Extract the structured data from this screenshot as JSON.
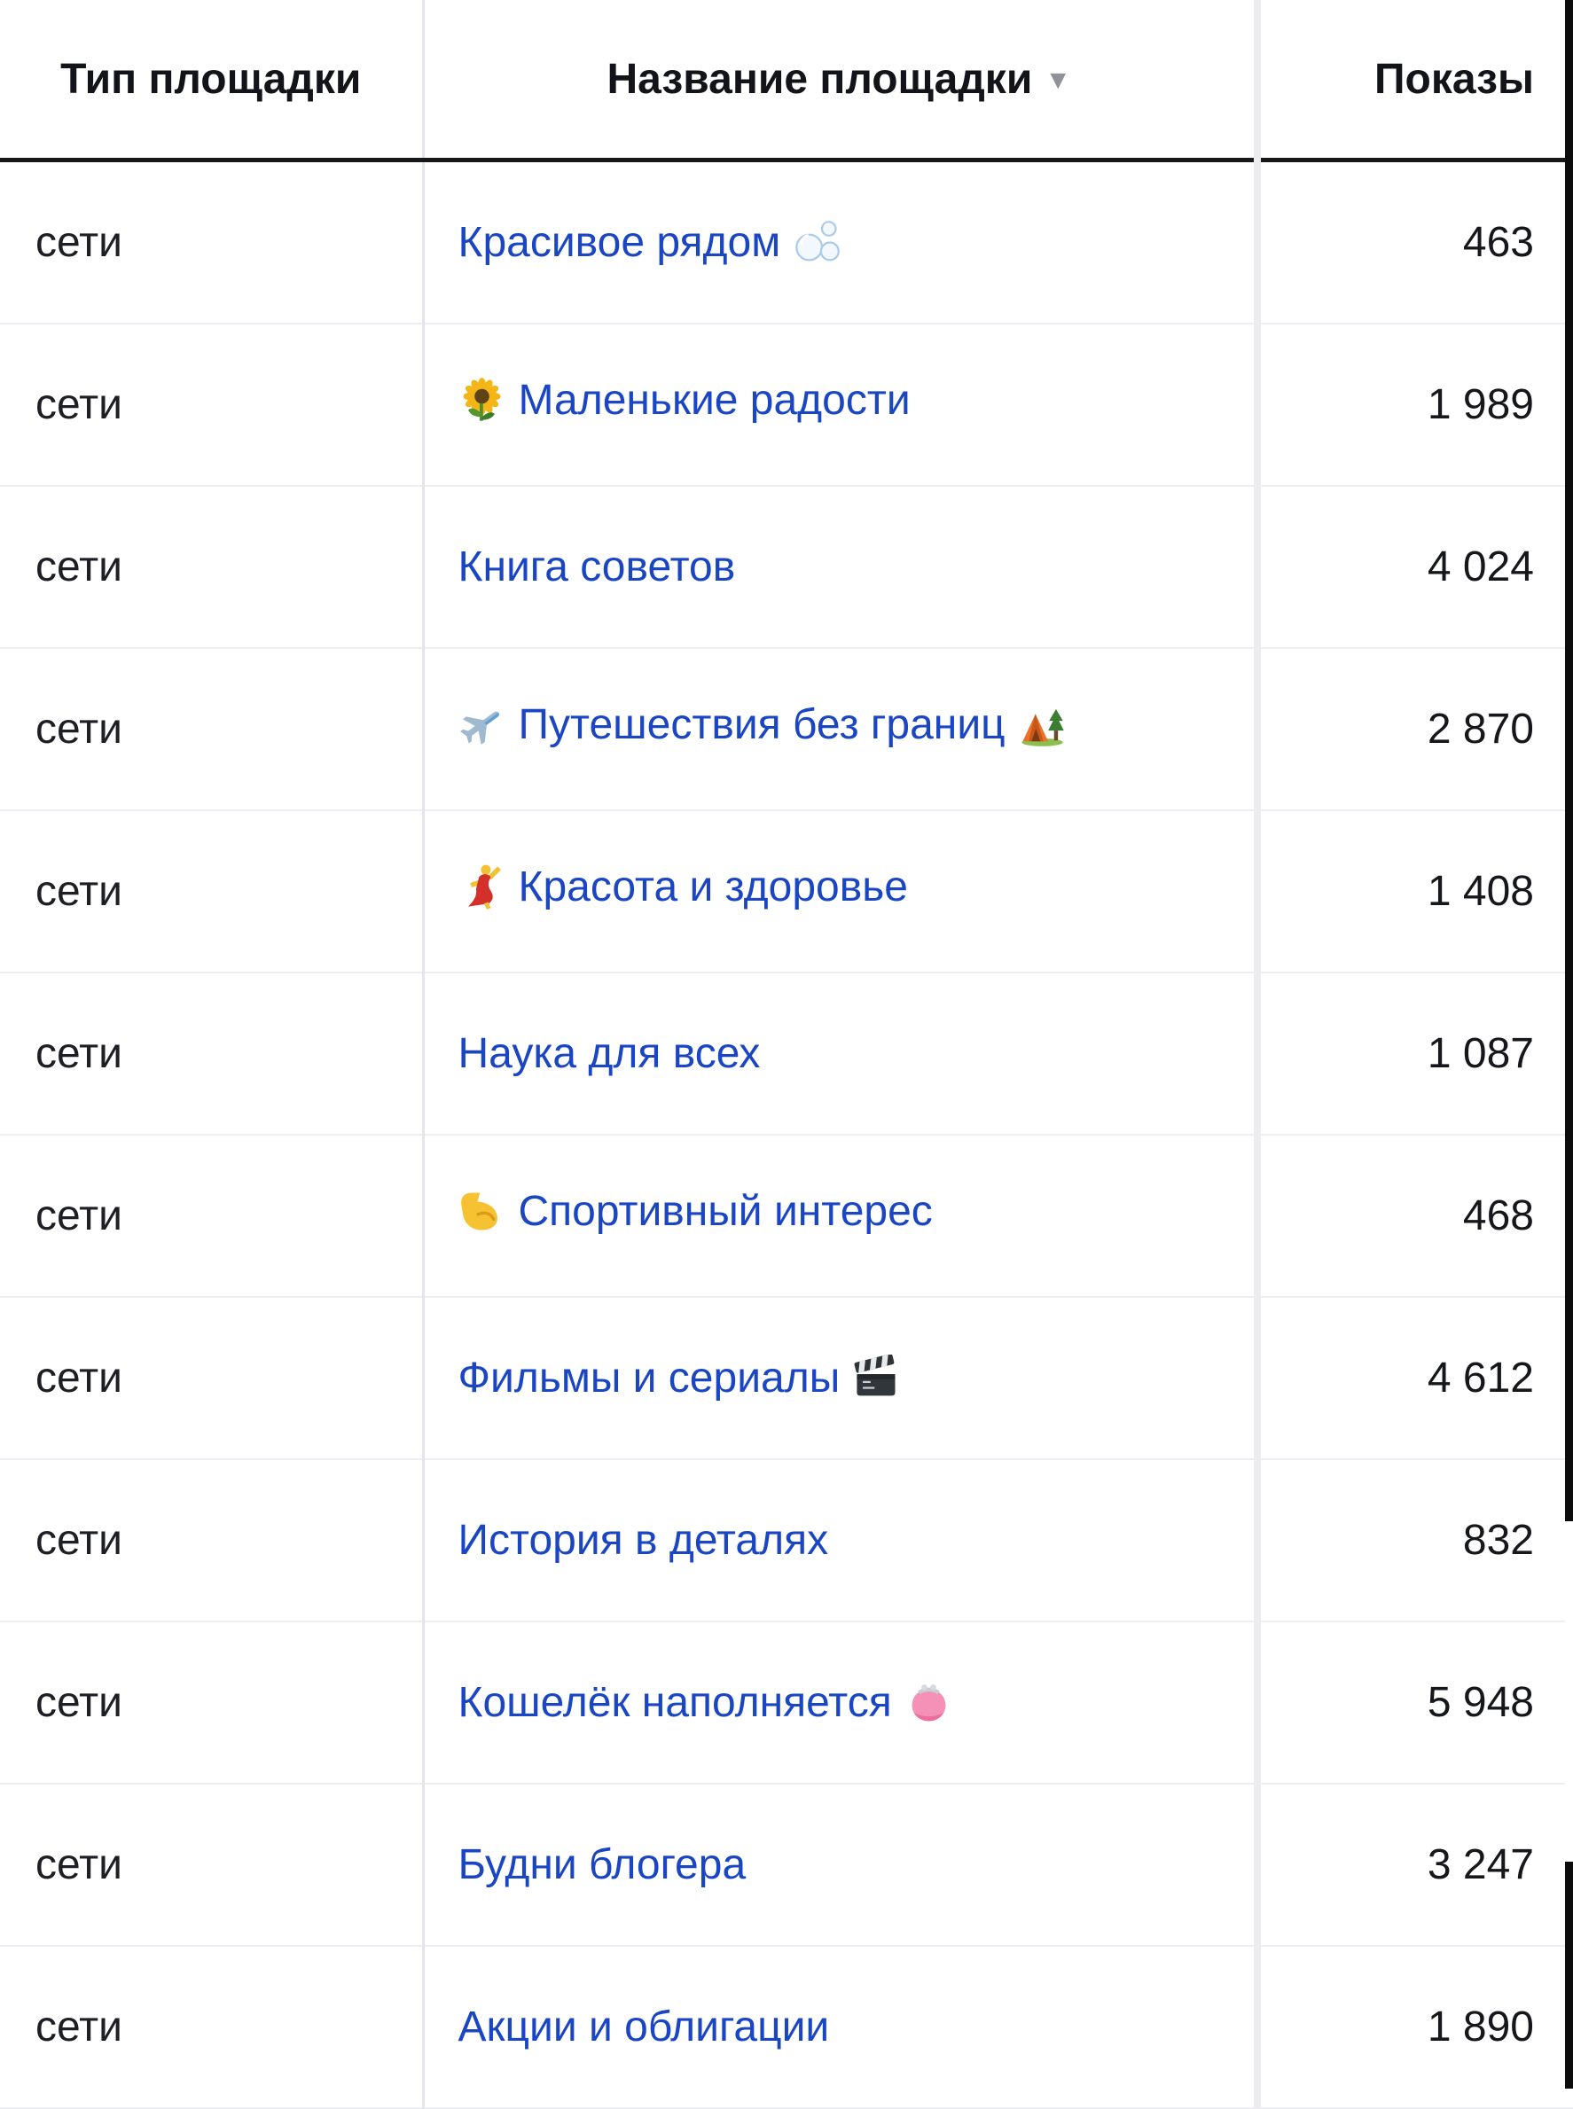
{
  "table": {
    "columns": [
      {
        "key": "type",
        "label": "Тип площадки",
        "align": "center"
      },
      {
        "key": "name",
        "label": "Название площадки",
        "align": "center",
        "sorted": "desc"
      },
      {
        "key": "impressions",
        "label": "Показы",
        "align": "right"
      }
    ],
    "sort_indicator": "▼",
    "rows": [
      {
        "type": "сети",
        "name": "Красивое рядом",
        "emoji_start": null,
        "emoji_end": "bubbles",
        "impressions": "463"
      },
      {
        "type": "сети",
        "name": "Маленькие радости",
        "emoji_start": "sunflower",
        "emoji_end": null,
        "impressions": "1 989"
      },
      {
        "type": "сети",
        "name": "Книга советов",
        "emoji_start": null,
        "emoji_end": null,
        "impressions": "4 024"
      },
      {
        "type": "сети",
        "name": "Путешествия без границ",
        "emoji_start": "airplane",
        "emoji_end": "camping",
        "impressions": "2 870"
      },
      {
        "type": "сети",
        "name": "Красота и здоровье",
        "emoji_start": "dancer",
        "emoji_end": null,
        "impressions": "1 408"
      },
      {
        "type": "сети",
        "name": "Наука для всех",
        "emoji_start": null,
        "emoji_end": null,
        "impressions": "1 087"
      },
      {
        "type": "сети",
        "name": "Спортивный интерес",
        "emoji_start": "biceps",
        "emoji_end": null,
        "impressions": "468"
      },
      {
        "type": "сети",
        "name": "Фильмы и сериалы",
        "emoji_start": null,
        "emoji_end": "clapper",
        "impressions": "4 612"
      },
      {
        "type": "сети",
        "name": "История в деталях",
        "emoji_start": null,
        "emoji_end": null,
        "impressions": "832"
      },
      {
        "type": "сети",
        "name": "Кошелёк наполняется",
        "emoji_start": null,
        "emoji_end": "purse",
        "impressions": "5 948"
      },
      {
        "type": "сети",
        "name": "Будни блогера",
        "emoji_start": null,
        "emoji_end": null,
        "impressions": "3 247"
      },
      {
        "type": "сети",
        "name": "Акции и облигации",
        "emoji_start": null,
        "emoji_end": null,
        "impressions": "1 890"
      }
    ]
  },
  "colors": {
    "link": "#1a46c4",
    "text": "#1d1f24",
    "header_text": "#121419",
    "header_underline": "#17181a",
    "row_divider": "#edeef3",
    "column_divider": "#e4e6ea",
    "column_divider_thick": "#ededf0",
    "sort_arrow": "#8f9296",
    "scrollbar_track": "#0c0c0c",
    "scrollbar_thumb": "#ffffff"
  }
}
